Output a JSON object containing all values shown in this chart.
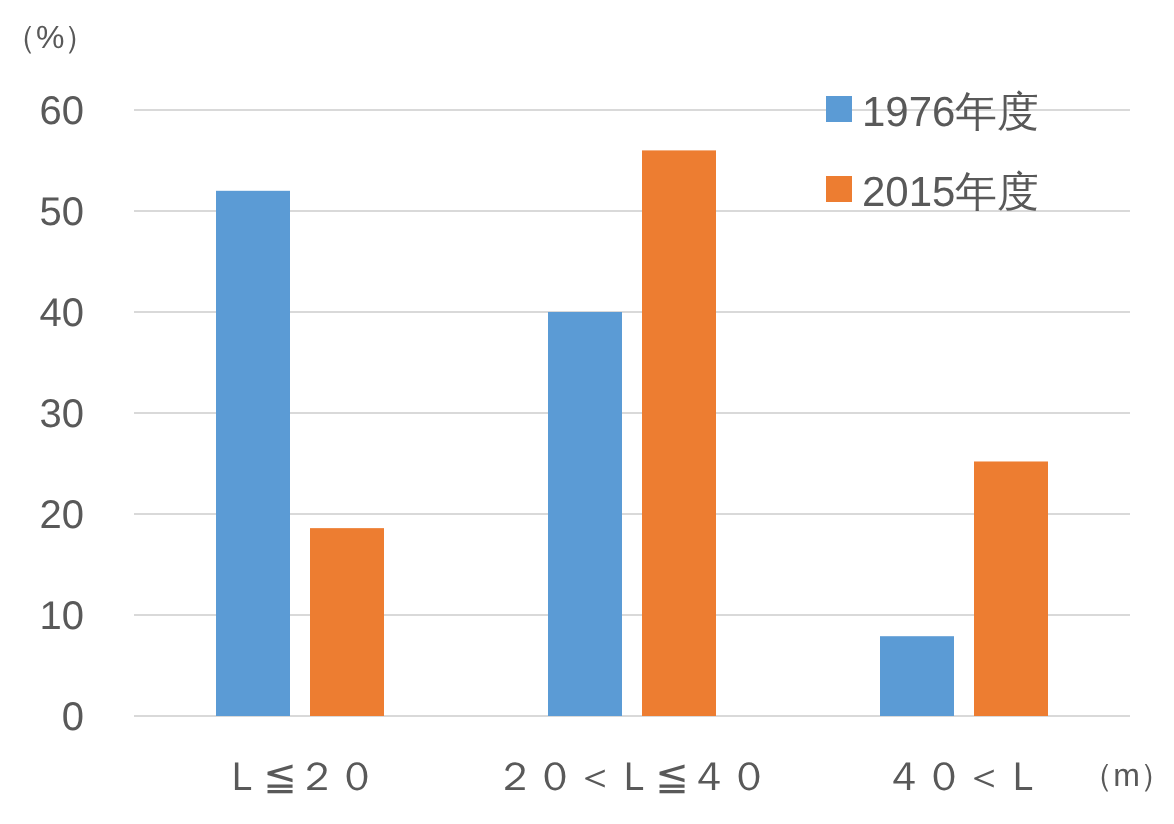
{
  "chart_data": {
    "type": "bar",
    "ylabel": "（%）",
    "xlabel": "（m）",
    "categories": [
      "Ｌ≦２０",
      "２０＜Ｌ≦４０",
      "４０＜Ｌ"
    ],
    "series": [
      {
        "name": "1976年度",
        "color": "#5b9bd5",
        "values": [
          52,
          40,
          7.9
        ]
      },
      {
        "name": "2015年度",
        "color": "#ed7d31",
        "values": [
          18.6,
          56,
          25.2
        ]
      }
    ],
    "ylim": [
      0,
      60
    ],
    "yticks": [
      0,
      10,
      20,
      30,
      40,
      50,
      60
    ],
    "grid": "y",
    "legend": "top right"
  }
}
